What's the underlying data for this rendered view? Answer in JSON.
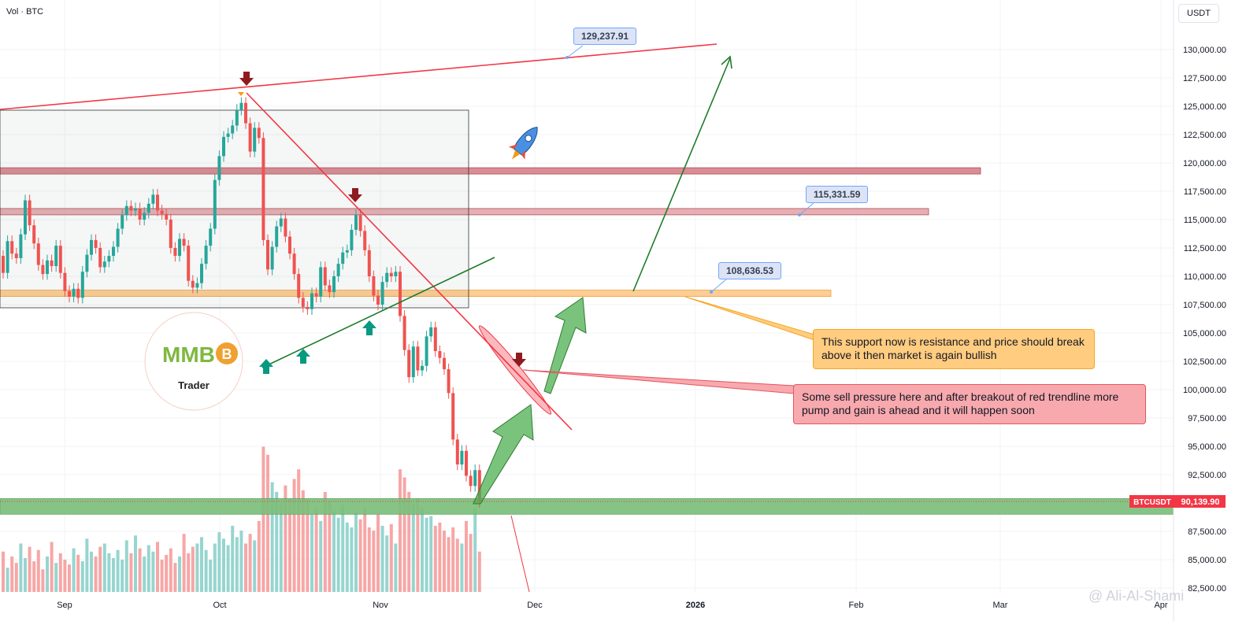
{
  "header": {
    "vol_label": "Vol · BTC",
    "currency": "USDT"
  },
  "chart_data": {
    "type": "candlestick",
    "symbol": "BTCUSDT",
    "last_price_label": "90,139.90",
    "y_axis": {
      "ticks": [
        "130,000.00",
        "127,500.00",
        "125,000.00",
        "122,500.00",
        "120,000.00",
        "117,500.00",
        "115,000.00",
        "112,500.00",
        "110,000.00",
        "107,500.00",
        "105,000.00",
        "102,500.00",
        "100,000.00",
        "97,500.00",
        "95,000.00",
        "92,500.00",
        "87,500.00",
        "85,000.00",
        "82,500.00"
      ],
      "range": [
        82500,
        130000
      ]
    },
    "x_axis": {
      "labels": [
        "Sep",
        "Oct",
        "Nov",
        "Dec",
        "2026",
        "Feb",
        "Mar",
        "Apr"
      ]
    },
    "candles": [
      [
        111800,
        110300
      ],
      [
        110300,
        113100
      ],
      [
        113100,
        112000
      ],
      [
        112000,
        111600
      ],
      [
        111600,
        113700
      ],
      [
        113700,
        116700
      ],
      [
        116700,
        114500
      ],
      [
        114500,
        112900
      ],
      [
        112900,
        111000
      ],
      [
        111000,
        110200
      ],
      [
        110200,
        111400
      ],
      [
        111400,
        110900
      ],
      [
        110900,
        112700
      ],
      [
        112700,
        110300
      ],
      [
        110300,
        108700
      ],
      [
        108700,
        108200
      ],
      [
        108200,
        108900
      ],
      [
        108900,
        108100
      ],
      [
        108100,
        110400
      ],
      [
        110400,
        111900
      ],
      [
        111900,
        113200
      ],
      [
        113200,
        112500
      ],
      [
        112500,
        110800
      ],
      [
        110800,
        111300
      ],
      [
        111300,
        111800
      ],
      [
        111800,
        112600
      ],
      [
        112600,
        114200
      ],
      [
        114200,
        115400
      ],
      [
        115400,
        116200
      ],
      [
        116200,
        115800
      ],
      [
        115800,
        116000
      ],
      [
        116000,
        115000
      ],
      [
        115000,
        115600
      ],
      [
        115600,
        116400
      ],
      [
        116400,
        117200
      ],
      [
        117200,
        115800
      ],
      [
        115800,
        115500
      ],
      [
        115500,
        115000
      ],
      [
        115000,
        112500
      ],
      [
        112500,
        111800
      ],
      [
        111800,
        113300
      ],
      [
        113300,
        112700
      ],
      [
        112700,
        109600
      ],
      [
        109600,
        109000
      ],
      [
        109000,
        109400
      ],
      [
        109400,
        111100
      ],
      [
        111100,
        112700
      ],
      [
        112700,
        114200
      ],
      [
        114200,
        118500
      ],
      [
        118500,
        120600
      ],
      [
        120600,
        122300
      ],
      [
        122300,
        122600
      ],
      [
        122600,
        123300
      ],
      [
        123300,
        124700
      ],
      [
        124700,
        125300
      ],
      [
        125300,
        123500
      ],
      [
        123500,
        121000
      ],
      [
        121000,
        123100
      ],
      [
        123100,
        122200
      ],
      [
        122200,
        113200
      ],
      [
        113200,
        110600
      ],
      [
        110600,
        112600
      ],
      [
        112600,
        114400
      ],
      [
        114400,
        115100
      ],
      [
        115100,
        113500
      ],
      [
        113500,
        112000
      ],
      [
        112000,
        110200
      ],
      [
        110200,
        108100
      ],
      [
        108100,
        107300
      ],
      [
        107300,
        107100
      ],
      [
        107100,
        108500
      ],
      [
        108500,
        108200
      ],
      [
        108200,
        110800
      ],
      [
        110800,
        109200
      ],
      [
        109200,
        108600
      ],
      [
        108600,
        110000
      ],
      [
        110000,
        111100
      ],
      [
        111100,
        112100
      ],
      [
        112100,
        112300
      ],
      [
        112300,
        114100
      ],
      [
        114100,
        115400
      ],
      [
        115400,
        114000
      ],
      [
        114000,
        112300
      ],
      [
        112300,
        110000
      ],
      [
        110000,
        108300
      ],
      [
        108300,
        107500
      ],
      [
        107500,
        109500
      ],
      [
        109500,
        110300
      ],
      [
        110300,
        110000
      ],
      [
        110000,
        110400
      ],
      [
        110400,
        106500
      ],
      [
        106500,
        103500
      ],
      [
        103500,
        101100
      ],
      [
        101100,
        103800
      ],
      [
        103800,
        101700
      ],
      [
        101700,
        102100
      ],
      [
        102100,
        104700
      ],
      [
        104700,
        105500
      ],
      [
        105500,
        103400
      ],
      [
        103400,
        102800
      ],
      [
        102800,
        101800
      ],
      [
        101800,
        99700
      ],
      [
        99700,
        95600
      ],
      [
        95600,
        93400
      ],
      [
        93400,
        94600
      ],
      [
        94600,
        92400
      ],
      [
        92400,
        91500
      ],
      [
        91500,
        92900
      ],
      [
        92900,
        90100
      ]
    ],
    "volumes": [
      0.25,
      0.15,
      0.22,
      0.18,
      0.3,
      0.21,
      0.28,
      0.19,
      0.26,
      0.14,
      0.22,
      0.31,
      0.18,
      0.24,
      0.2,
      0.17,
      0.27,
      0.23,
      0.19,
      0.33,
      0.25,
      0.22,
      0.28,
      0.3,
      0.24,
      0.21,
      0.26,
      0.2,
      0.32,
      0.24,
      0.35,
      0.27,
      0.22,
      0.29,
      0.25,
      0.31,
      0.2,
      0.23,
      0.27,
      0.18,
      0.22,
      0.36,
      0.24,
      0.28,
      0.3,
      0.34,
      0.26,
      0.2,
      0.3,
      0.37,
      0.33,
      0.29,
      0.41,
      0.34,
      0.38,
      0.3,
      0.36,
      0.32,
      0.44,
      0.9,
      0.85,
      0.68,
      0.62,
      0.55,
      0.66,
      0.58,
      0.7,
      0.76,
      0.63,
      0.57,
      0.48,
      0.52,
      0.44,
      0.62,
      0.56,
      0.5,
      0.46,
      0.54,
      0.43,
      0.4,
      0.49,
      0.45,
      0.52,
      0.4,
      0.38,
      0.48,
      0.41,
      0.35,
      0.42,
      0.3,
      0.76,
      0.71,
      0.62,
      0.55,
      0.58,
      0.52,
      0.46,
      0.47,
      0.41,
      0.43,
      0.38,
      0.34,
      0.4,
      0.33,
      0.3,
      0.44,
      0.36,
      0.52,
      0.25
    ],
    "levels": [
      {
        "name": "resistance-119k",
        "y": 119300,
        "x_end": "Feb",
        "color": "#d9838b"
      },
      {
        "name": "resistance-115k",
        "y": 115700,
        "x_end": "Jan",
        "color": "#e6a9ad"
      },
      {
        "name": "support-108k",
        "y": 108500,
        "x_end": "Jan",
        "color": "#ffc98a"
      },
      {
        "name": "support-89k",
        "y": 89700,
        "x_end": "Apr",
        "color": "#7bbf7b"
      }
    ],
    "price_labels": [
      "129,237.91",
      "115,331.59",
      "108,636.53"
    ]
  },
  "annotations": {
    "callout_support": "This support now is resistance and price should break above it then market is again bullish",
    "callout_sell": "Some sell pressure here and after breakout of red trendline more pump and gain is ahead and it will happen soon",
    "logo": {
      "letters": "MMB",
      "coin_glyph": "B",
      "text": "Trader"
    },
    "rocket_icon": "rocket-icon",
    "watermark": "@ Ali-Al-Shami"
  },
  "colors": {
    "up": "#26a69a",
    "down": "#ef5350",
    "vol_up": "#97d5cf",
    "vol_down": "#f7a6a6",
    "trend_red": "#f23645",
    "trend_green": "#1e7b2c",
    "marker_green": "#089981",
    "marker_red": "#8e1b1f"
  }
}
